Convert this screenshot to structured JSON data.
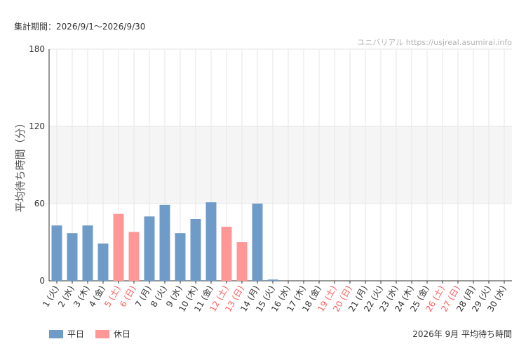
{
  "header": {
    "period_label": "集計期間：2026/9/1〜2026/9/30",
    "attribution": "ユニバリアル https://usjreal.asumirai.info"
  },
  "legend": {
    "weekday_label": "平日",
    "holiday_label": "休日"
  },
  "caption": "2026年 9月 平均待ち時間",
  "colors": {
    "weekday": "#6f9bc8",
    "holiday": "#ff9797",
    "holiday_text": "#ff5c5c",
    "band": "#f5f5f5",
    "grid": "#e6e6e6"
  },
  "chart_data": {
    "type": "bar",
    "ylabel": "平均待ち時間（分）",
    "ylim": [
      0,
      180
    ],
    "yticks": [
      0,
      60,
      120,
      180
    ],
    "grid": true,
    "legend_placement": "bottom-left",
    "categories": [
      "1 (火)",
      "2 (水)",
      "3 (木)",
      "4 (金)",
      "5 (土)",
      "6 (日)",
      "7 (月)",
      "8 (火)",
      "9 (水)",
      "10 (木)",
      "11 (金)",
      "12 (土)",
      "13 (日)",
      "14 (月)",
      "15 (火)",
      "16 (水)",
      "17 (木)",
      "18 (金)",
      "19 (土)",
      "20 (日)",
      "21 (月)",
      "22 (火)",
      "23 (水)",
      "24 (木)",
      "25 (金)",
      "26 (土)",
      "27 (日)",
      "28 (月)",
      "29 (火)",
      "30 (水)"
    ],
    "day_type": [
      "平日",
      "平日",
      "平日",
      "平日",
      "休日",
      "休日",
      "平日",
      "平日",
      "平日",
      "平日",
      "平日",
      "休日",
      "休日",
      "平日",
      "平日",
      "平日",
      "平日",
      "平日",
      "休日",
      "休日",
      "平日",
      "平日",
      "平日",
      "平日",
      "平日",
      "休日",
      "休日",
      "平日",
      "平日",
      "平日"
    ],
    "values": [
      43,
      37,
      43,
      29,
      52,
      38,
      50,
      59,
      37,
      48,
      61,
      42,
      30,
      60,
      1,
      0,
      0,
      0,
      0,
      0,
      0,
      0,
      0,
      0,
      0,
      0,
      0,
      0,
      0,
      0
    ]
  }
}
